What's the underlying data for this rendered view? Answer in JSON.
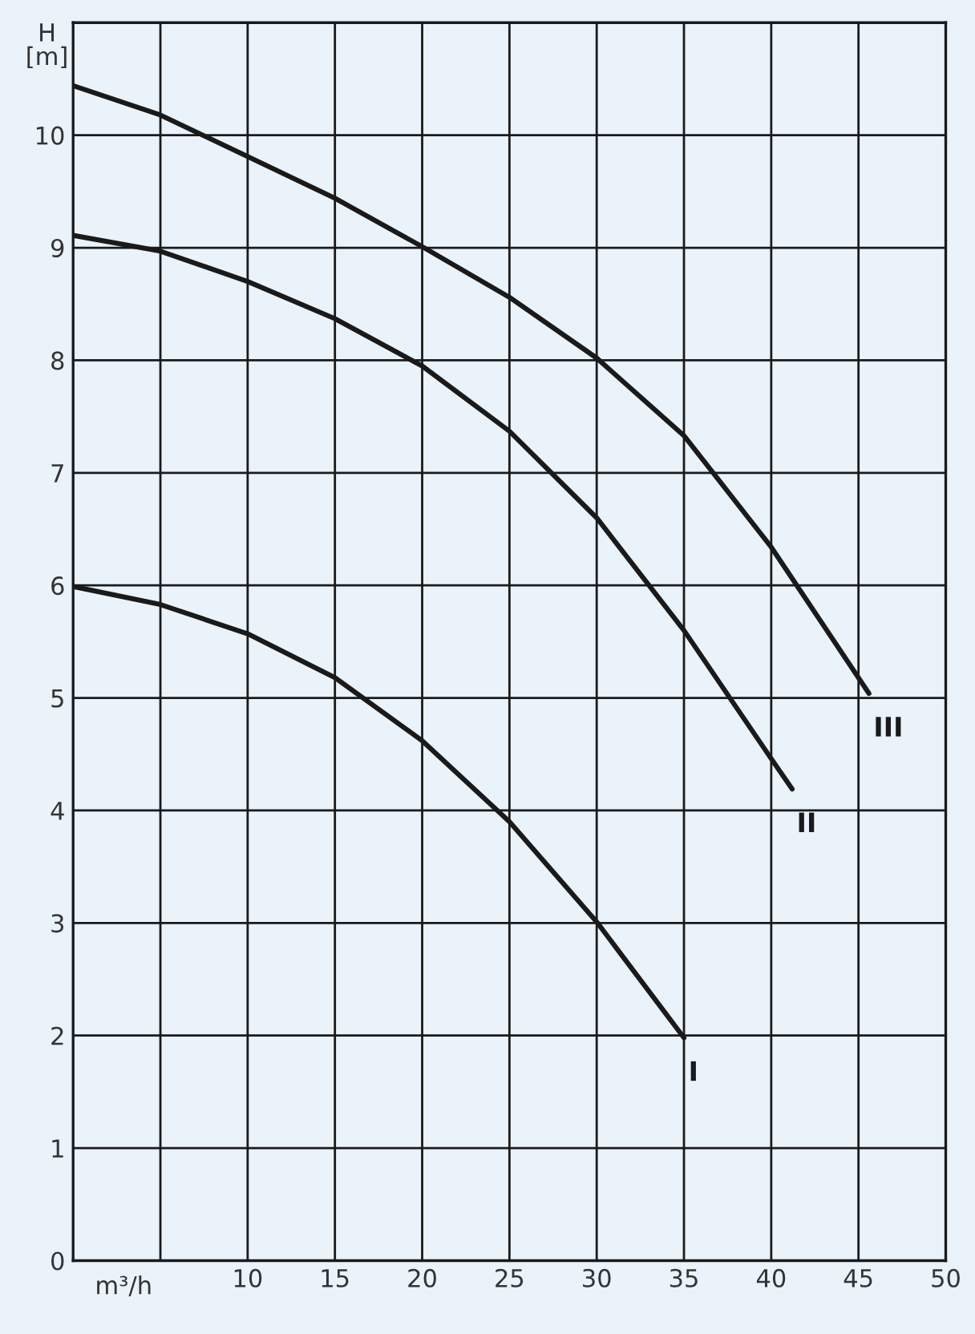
{
  "chart_data": {
    "type": "line",
    "xlabel": "m³/h",
    "ylabel": "H\n[m]",
    "xlim": [
      0,
      50
    ],
    "ylim": [
      0,
      11
    ],
    "xticks": [
      {
        "value": 5,
        "label": null
      },
      10,
      15,
      20,
      25,
      30,
      35,
      40,
      45,
      50
    ],
    "yticks": [
      0,
      1,
      2,
      3,
      4,
      5,
      6,
      7,
      8,
      9,
      10
    ],
    "grid": true,
    "legend": false,
    "marker": "none",
    "line_style": "solid",
    "series": [
      {
        "name": "I",
        "color": "#1a1a1a",
        "x": [
          0,
          5,
          10,
          15,
          20,
          25,
          30,
          35
        ],
        "values": [
          5.99,
          5.83,
          5.57,
          5.18,
          4.62,
          3.9,
          3.01,
          1.98
        ]
      },
      {
        "name": "II",
        "color": "#1a1a1a",
        "x": [
          0,
          5,
          10,
          15,
          20,
          25,
          30,
          35,
          40,
          41.2
        ],
        "values": [
          9.11,
          8.97,
          8.7,
          8.37,
          7.95,
          7.37,
          6.6,
          5.6,
          4.46,
          4.19
        ]
      },
      {
        "name": "III",
        "color": "#1a1a1a",
        "x": [
          0,
          5,
          10,
          15,
          20,
          25,
          30,
          35,
          40,
          45.6
        ],
        "values": [
          10.44,
          10.18,
          9.81,
          9.44,
          9.01,
          8.56,
          8.02,
          7.33,
          6.34,
          5.04
        ]
      }
    ]
  }
}
